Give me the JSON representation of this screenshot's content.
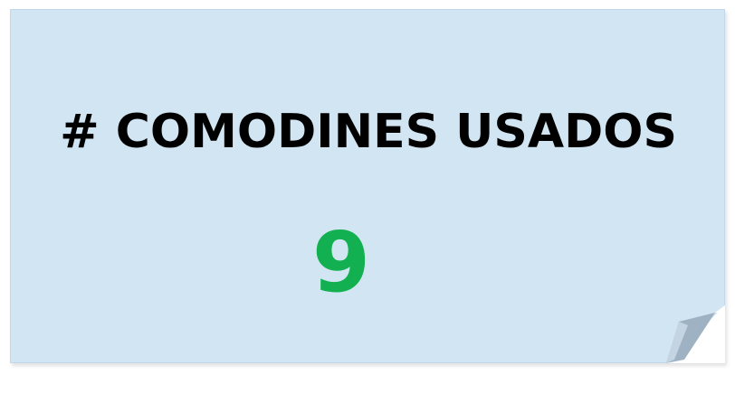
{
  "card": {
    "title": "# COMODINES USADOS",
    "value": "9"
  },
  "colors": {
    "card_background": "#d1e5f3",
    "title_text": "#000000",
    "value_text": "#12b050",
    "curl_shadow": "#9fb2c4"
  }
}
